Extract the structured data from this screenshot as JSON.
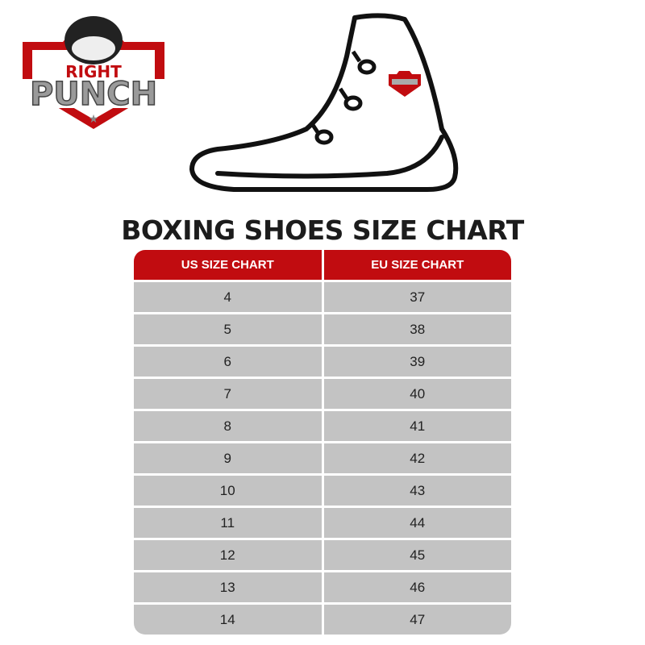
{
  "logo": {
    "text_top": "RIGHT",
    "text_main": "PUNCH",
    "brand_color": "#c10c10"
  },
  "title": "BOXING SHOES SIZE CHART",
  "table": {
    "headers": [
      "US SIZE CHART",
      "EU SIZE CHART"
    ],
    "rows": [
      [
        "4",
        "37"
      ],
      [
        "5",
        "38"
      ],
      [
        "6",
        "39"
      ],
      [
        "7",
        "40"
      ],
      [
        "8",
        "41"
      ],
      [
        "9",
        "42"
      ],
      [
        "10",
        "43"
      ],
      [
        "11",
        "44"
      ],
      [
        "12",
        "45"
      ],
      [
        "13",
        "46"
      ],
      [
        "14",
        "47"
      ]
    ]
  }
}
